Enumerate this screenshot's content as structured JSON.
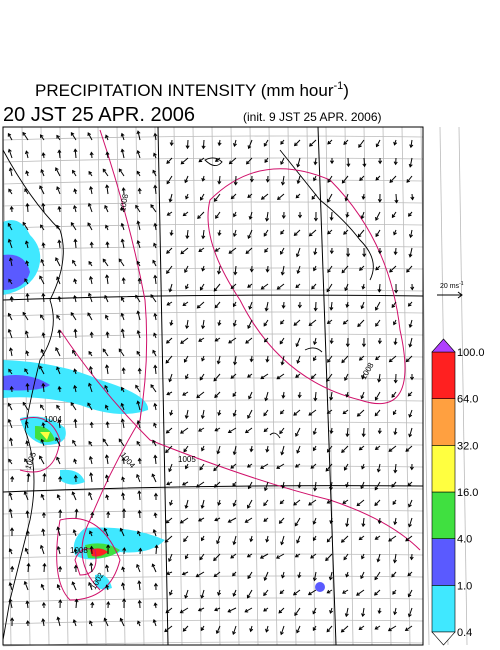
{
  "header": {
    "title": "PRECIPITATION INTENSITY (mm hour",
    "title_exponent": "-1",
    "title_close": ")",
    "valid_time": "20 JST 25 APR. 2006",
    "init_time": "(init. 9 JST 25 APR. 2006)"
  },
  "wind_scale": {
    "label": "20 ms",
    "exponent": "-1"
  },
  "colorbar": {
    "levels": [
      "0.4",
      "1.0",
      "4.0",
      "16.0",
      "32.0",
      "64.0",
      "100.0"
    ],
    "colors": [
      "#40e8ff",
      "#5a5aff",
      "#40e040",
      "#ffff40",
      "#ffa040",
      "#ff2020"
    ],
    "over_color": "#b040ff",
    "under_color": "#ffffff"
  },
  "isobar_labels": [
    "1008",
    "1004",
    "1005",
    "1008",
    "1004",
    "1005",
    "1008",
    "1002"
  ]
}
